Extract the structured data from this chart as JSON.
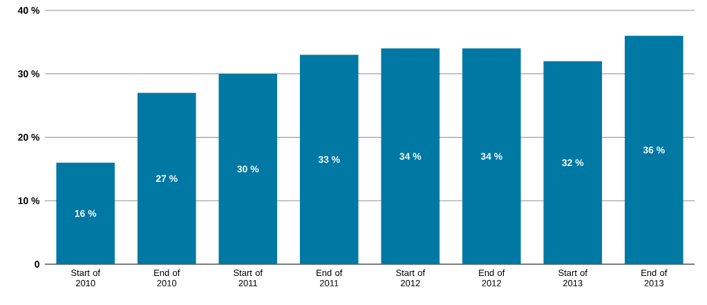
{
  "chart_data": {
    "type": "bar",
    "categories": [
      "Start of 2010",
      "End of 2010",
      "Start of 2011",
      "End of 2011",
      "Start of 2012",
      "End of 2012",
      "Start of 2013",
      "End of 2013"
    ],
    "values": [
      16,
      27,
      30,
      33,
      34,
      34,
      32,
      36
    ],
    "value_labels": [
      "16 %",
      "27 %",
      "30 %",
      "33 %",
      "34 %",
      "34 %",
      "32 %",
      "36 %"
    ],
    "color": "#0078a4",
    "ylim": [
      0,
      40
    ],
    "yticks": [
      {
        "value": 0,
        "label": "0"
      },
      {
        "value": 10,
        "label": "10 %"
      },
      {
        "value": 20,
        "label": "20 %"
      },
      {
        "value": 30,
        "label": "30 %"
      },
      {
        "value": 40,
        "label": "40 %"
      }
    ],
    "grid": "y"
  }
}
